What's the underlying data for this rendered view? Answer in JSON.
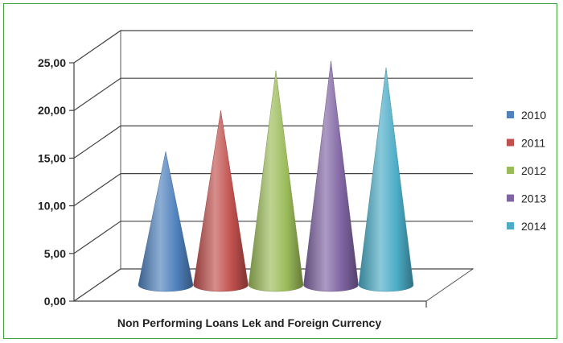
{
  "chart_data": {
    "type": "bar",
    "style": "3d-cone",
    "categories": [
      "Non Performing Loans Lek and Foreign Currency"
    ],
    "xlabel": "Non Performing Loans Lek and Foreign Currency",
    "ylabel": "",
    "ylim": [
      0,
      25
    ],
    "yticks": [
      "0,00",
      "5,00",
      "10,00",
      "15,00",
      "20,00",
      "25,00"
    ],
    "grid": true,
    "legend_position": "right",
    "series": [
      {
        "name": "2010",
        "values": [
          14.0
        ],
        "color": "#4f81bd"
      },
      {
        "name": "2011",
        "values": [
          18.3
        ],
        "color": "#c0504d"
      },
      {
        "name": "2012",
        "values": [
          22.5
        ],
        "color": "#9bbb59"
      },
      {
        "name": "2013",
        "values": [
          23.5
        ],
        "color": "#8064a2"
      },
      {
        "name": "2014",
        "values": [
          22.8
        ],
        "color": "#4bacc6"
      }
    ]
  }
}
